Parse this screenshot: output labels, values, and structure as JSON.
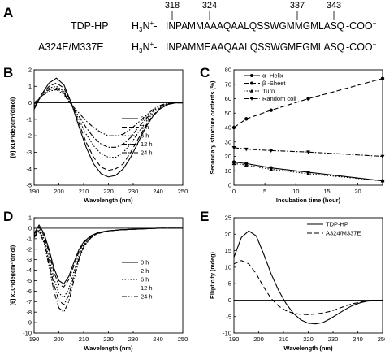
{
  "panel_a": {
    "label": "A",
    "positions": [
      "318",
      "324",
      "337",
      "343"
    ],
    "rows": [
      {
        "name": "TDP-HP",
        "prefix": "H",
        "sub": "3",
        "sup": "N",
        "charge": "+",
        "dash": "-",
        "sequence": "INPAMMAAAQAALQSSWGMMGMLASQ",
        "suffix": "-COO",
        "end_charge": "−"
      },
      {
        "name": "A324E/M337E",
        "prefix": "H",
        "sub": "3",
        "sup": "N",
        "charge": "+",
        "dash": "-",
        "sequence": "INPAMMEAAQAALQSSWGMEGMLASQ",
        "suffix": "-COO",
        "end_charge": "−"
      }
    ]
  },
  "chart_data": [
    {
      "panel": "B",
      "type": "line",
      "xlabel": "Wavelength (nm)",
      "ylabel": "[θ] x10³(degcm²/dmol)",
      "xlim": [
        190,
        250
      ],
      "ylim": [
        -5,
        2
      ],
      "xticks": [
        190,
        200,
        210,
        220,
        230,
        240,
        250
      ],
      "yticks": [
        -5,
        -4,
        -3,
        -2,
        -1,
        0,
        1,
        2
      ],
      "legend_position": "right",
      "zero_line": true,
      "series": [
        {
          "name": "0 h",
          "style": "solid",
          "x": [
            190,
            193,
            196,
            199,
            202,
            205,
            208,
            211,
            214,
            217,
            220,
            223,
            226,
            229,
            232,
            235,
            238,
            241,
            244,
            247,
            250
          ],
          "y": [
            -0.4,
            0.5,
            1.2,
            1.5,
            1.1,
            0.0,
            -1.4,
            -2.7,
            -3.7,
            -4.3,
            -4.5,
            -4.4,
            -4.0,
            -3.3,
            -2.4,
            -1.5,
            -0.8,
            -0.35,
            -0.1,
            0.0,
            0.0
          ]
        },
        {
          "name": "2 h",
          "style": "dash",
          "x": [
            190,
            193,
            196,
            199,
            202,
            205,
            208,
            211,
            214,
            217,
            220,
            223,
            226,
            229,
            232,
            235,
            238,
            241,
            244,
            247,
            250
          ],
          "y": [
            -0.3,
            0.5,
            1.0,
            1.2,
            0.9,
            0.0,
            -1.2,
            -2.4,
            -3.3,
            -3.9,
            -4.1,
            -4.0,
            -3.7,
            -3.0,
            -2.2,
            -1.4,
            -0.75,
            -0.3,
            -0.1,
            0.0,
            0.0
          ]
        },
        {
          "name": "6 h",
          "style": "dot",
          "x": [
            190,
            193,
            196,
            199,
            202,
            205,
            208,
            211,
            214,
            217,
            220,
            223,
            226,
            229,
            232,
            235,
            238,
            241,
            244,
            247,
            250
          ],
          "y": [
            -0.2,
            0.4,
            0.9,
            1.0,
            0.7,
            -0.1,
            -1.0,
            -1.9,
            -2.6,
            -3.1,
            -3.3,
            -3.3,
            -3.0,
            -2.5,
            -1.8,
            -1.2,
            -0.6,
            -0.25,
            -0.05,
            0.0,
            0.0
          ]
        },
        {
          "name": "12 h",
          "style": "dashdot",
          "x": [
            190,
            193,
            196,
            199,
            202,
            205,
            208,
            211,
            214,
            217,
            220,
            223,
            226,
            229,
            232,
            235,
            238,
            241,
            244,
            247,
            250
          ],
          "y": [
            -0.1,
            0.4,
            0.8,
            0.9,
            0.6,
            -0.1,
            -0.8,
            -1.5,
            -2.1,
            -2.5,
            -2.7,
            -2.7,
            -2.5,
            -2.1,
            -1.5,
            -1.0,
            -0.5,
            -0.2,
            -0.05,
            0.0,
            0.0
          ]
        },
        {
          "name": "24 h",
          "style": "dashdotdot",
          "x": [
            190,
            193,
            196,
            199,
            202,
            205,
            208,
            211,
            214,
            217,
            220,
            223,
            226,
            229,
            232,
            235,
            238,
            241,
            244,
            247,
            250
          ],
          "y": [
            0.0,
            0.4,
            0.7,
            0.8,
            0.5,
            -0.1,
            -0.6,
            -1.1,
            -1.5,
            -1.8,
            -2.0,
            -2.0,
            -1.9,
            -1.6,
            -1.2,
            -0.8,
            -0.4,
            -0.15,
            0.0,
            0.0,
            0.0
          ]
        }
      ]
    },
    {
      "panel": "C",
      "type": "line",
      "xlabel": "Incubation time (hour)",
      "ylabel": "Secondary structure contents (%)",
      "xlim": [
        0,
        24
      ],
      "ylim": [
        0,
        80
      ],
      "xticks": [
        0,
        5,
        10,
        15,
        20
      ],
      "yticks": [
        0,
        10,
        20,
        30,
        40,
        50,
        60,
        70,
        80
      ],
      "legend_position": "top-left",
      "series": [
        {
          "name": "α -Helix",
          "style": "solid",
          "marker": "circle",
          "x": [
            0,
            2,
            6,
            12,
            24
          ],
          "y": [
            16,
            15,
            12,
            9,
            3
          ]
        },
        {
          "name": "β -Sheet",
          "style": "dash",
          "marker": "circle",
          "x": [
            0,
            2,
            6,
            12,
            24
          ],
          "y": [
            40,
            46,
            52,
            60,
            74
          ]
        },
        {
          "name": "Turn",
          "style": "dot",
          "marker": "triangle-up",
          "x": [
            0,
            2,
            6,
            12,
            24
          ],
          "y": [
            15,
            14,
            11,
            8,
            3
          ]
        },
        {
          "name": "Random coil",
          "style": "dashdot",
          "marker": "triangle-down",
          "x": [
            0,
            2,
            6,
            12,
            24
          ],
          "y": [
            26,
            25,
            24,
            23,
            20
          ]
        }
      ]
    },
    {
      "panel": "D",
      "type": "line",
      "xlabel": "Wavelength (nm)",
      "ylabel": "[θ] x10³(degcm²/dmol)",
      "xlim": [
        190,
        250
      ],
      "ylim": [
        -10,
        1
      ],
      "xticks": [
        190,
        200,
        210,
        220,
        230,
        240,
        250
      ],
      "yticks": [
        -10,
        -9,
        -8,
        -7,
        -6,
        -5,
        -4,
        -3,
        -2,
        -1,
        0,
        1
      ],
      "legend_position": "right",
      "zero_line": true,
      "series": [
        {
          "name": "0 h",
          "style": "solid",
          "x": [
            190,
            192,
            194,
            196,
            198,
            200,
            202,
            204,
            206,
            208,
            210,
            213,
            216,
            220,
            225,
            230,
            235,
            240,
            245,
            250
          ],
          "y": [
            -0.5,
            0.3,
            -0.5,
            -2.0,
            -3.8,
            -5.0,
            -5.3,
            -4.6,
            -3.3,
            -2.1,
            -1.3,
            -0.7,
            -0.4,
            -0.25,
            -0.15,
            -0.1,
            -0.05,
            0.0,
            0.0,
            0.0
          ]
        },
        {
          "name": "2 h",
          "style": "dash",
          "x": [
            190,
            192,
            194,
            196,
            198,
            200,
            202,
            204,
            206,
            208,
            210,
            213,
            216,
            220,
            225,
            230,
            235,
            240,
            245,
            250
          ],
          "y": [
            -0.6,
            0.1,
            -0.7,
            -2.3,
            -4.2,
            -5.4,
            -5.6,
            -4.9,
            -3.6,
            -2.3,
            -1.4,
            -0.75,
            -0.4,
            -0.25,
            -0.15,
            -0.1,
            -0.05,
            0.0,
            0.0,
            0.0
          ]
        },
        {
          "name": "6 h",
          "style": "dot",
          "x": [
            190,
            192,
            194,
            196,
            198,
            200,
            202,
            204,
            206,
            208,
            210,
            213,
            216,
            220,
            225,
            230,
            235,
            240,
            245,
            250
          ],
          "y": [
            -0.7,
            -0.1,
            -1.0,
            -2.8,
            -4.8,
            -6.2,
            -6.6,
            -5.8,
            -4.2,
            -2.7,
            -1.6,
            -0.8,
            -0.45,
            -0.25,
            -0.15,
            -0.1,
            -0.05,
            0.0,
            0.0,
            0.0
          ]
        },
        {
          "name": "12 h",
          "style": "dashdot",
          "x": [
            190,
            192,
            194,
            196,
            198,
            200,
            202,
            204,
            206,
            208,
            210,
            213,
            216,
            220,
            225,
            230,
            235,
            240,
            245,
            250
          ],
          "y": [
            -0.8,
            -0.2,
            -1.2,
            -3.2,
            -5.4,
            -6.9,
            -7.3,
            -6.4,
            -4.6,
            -2.9,
            -1.7,
            -0.85,
            -0.45,
            -0.25,
            -0.15,
            -0.1,
            -0.05,
            0.0,
            0.0,
            0.0
          ]
        },
        {
          "name": "24 h",
          "style": "dashdotdot",
          "x": [
            190,
            192,
            194,
            196,
            198,
            200,
            202,
            204,
            206,
            208,
            210,
            213,
            216,
            220,
            225,
            230,
            235,
            240,
            245,
            250
          ],
          "y": [
            -0.9,
            -0.3,
            -1.4,
            -3.6,
            -6.0,
            -7.6,
            -8.0,
            -7.0,
            -5.0,
            -3.1,
            -1.8,
            -0.9,
            -0.5,
            -0.25,
            -0.15,
            -0.1,
            -0.05,
            0.0,
            0.0,
            0.0
          ]
        }
      ]
    },
    {
      "panel": "E",
      "type": "line",
      "xlabel": "Wavelength (nm)",
      "ylabel": "Ellipticity (mdeg)",
      "xlim": [
        190,
        250
      ],
      "ylim": [
        -10,
        25
      ],
      "xticks": [
        190,
        200,
        210,
        220,
        230,
        240,
        250
      ],
      "yticks": [
        -10,
        -5,
        0,
        5,
        10,
        15,
        20,
        25
      ],
      "legend_position": "top-right",
      "zero_line": true,
      "series": [
        {
          "name": "TDP-HP",
          "style": "solid",
          "x": [
            190,
            193,
            196,
            199,
            202,
            205,
            208,
            211,
            214,
            217,
            220,
            223,
            226,
            229,
            232,
            235,
            238,
            241,
            244,
            247,
            250
          ],
          "y": [
            13,
            19,
            21,
            19.5,
            14,
            8,
            3,
            -1,
            -4,
            -6,
            -7,
            -7.2,
            -6.8,
            -5.6,
            -4.2,
            -2.8,
            -1.6,
            -0.8,
            -0.3,
            -0.1,
            0
          ]
        },
        {
          "name": "A324/M337E",
          "style": "dash",
          "x": [
            190,
            193,
            196,
            199,
            202,
            205,
            208,
            211,
            214,
            217,
            220,
            223,
            226,
            229,
            232,
            235,
            238,
            241,
            244,
            247,
            250
          ],
          "y": [
            11,
            12,
            11,
            8,
            4,
            0.5,
            -1.8,
            -3.2,
            -4,
            -4.3,
            -4.4,
            -4.2,
            -3.9,
            -3.4,
            -2.6,
            -1.8,
            -1.1,
            -0.6,
            -0.25,
            -0.1,
            0
          ]
        }
      ]
    }
  ],
  "panel_labels": [
    "B",
    "C",
    "D",
    "E"
  ]
}
